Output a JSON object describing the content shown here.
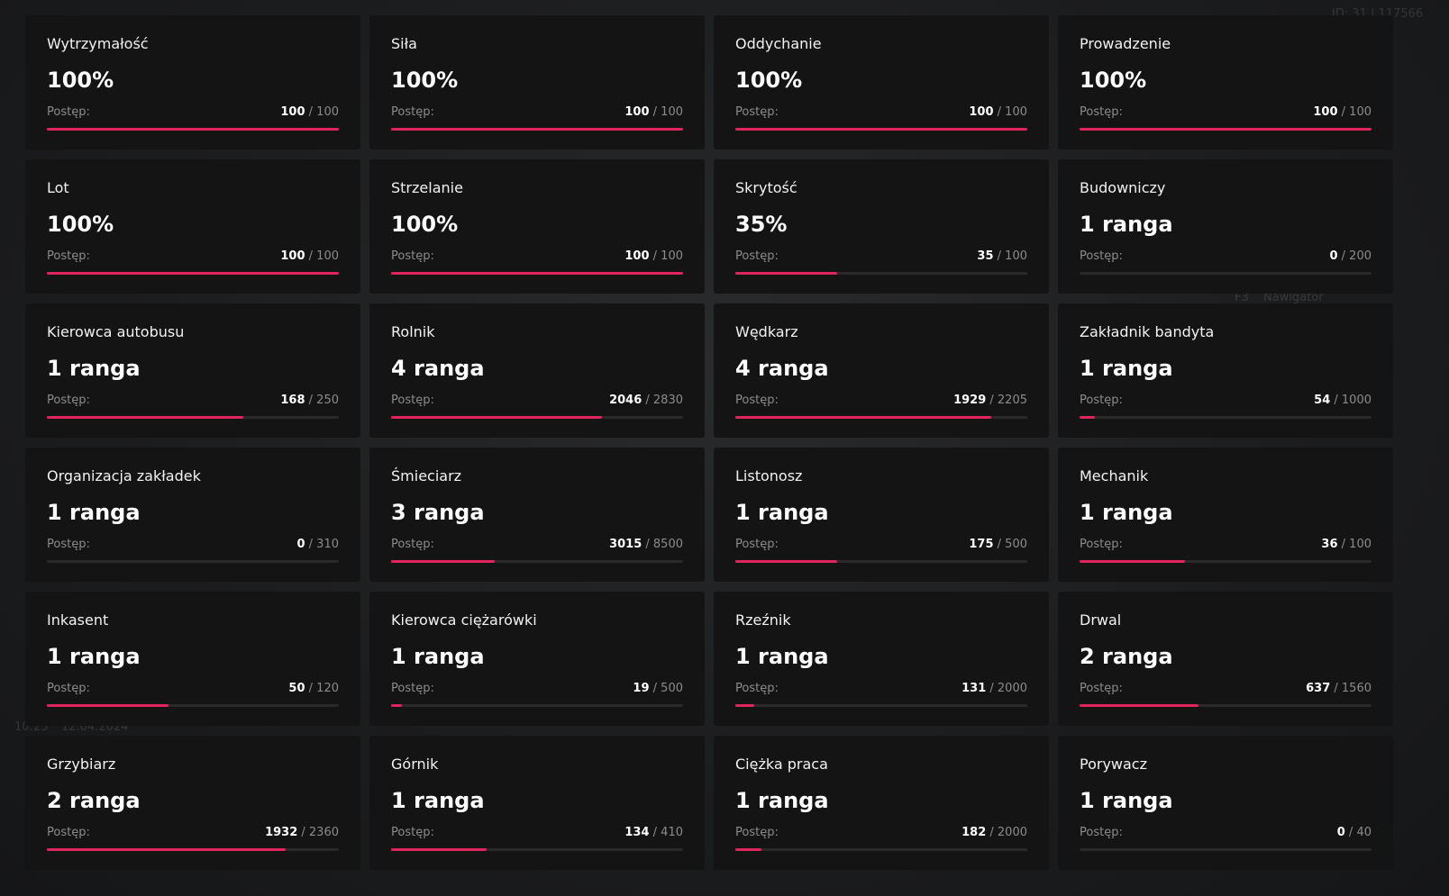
{
  "background": {
    "texts": [
      "ID: 31 | 117566",
      "F3",
      "Nawigator",
      "10:25",
      "12.04.2024"
    ]
  },
  "colors": {
    "accent": "#e0245e",
    "card": "#141414",
    "track": "#2a2a2a"
  },
  "progress_label": "Postęp:",
  "skills": [
    {
      "name": "Wytrzymałość",
      "value": "100%",
      "current": "100",
      "max": "100",
      "progress": 1.0
    },
    {
      "name": "Siła",
      "value": "100%",
      "current": "100",
      "max": "100",
      "progress": 1.0
    },
    {
      "name": "Oddychanie",
      "value": "100%",
      "current": "100",
      "max": "100",
      "progress": 1.0
    },
    {
      "name": "Prowadzenie",
      "value": "100%",
      "current": "100",
      "max": "100",
      "progress": 1.0
    },
    {
      "name": "Lot",
      "value": "100%",
      "current": "100",
      "max": "100",
      "progress": 1.0
    },
    {
      "name": "Strzelanie",
      "value": "100%",
      "current": "100",
      "max": "100",
      "progress": 1.0
    },
    {
      "name": "Skrytość",
      "value": "35%",
      "current": "35",
      "max": "100",
      "progress": 0.35
    },
    {
      "name": "Budowniczy",
      "value": "1 ranga",
      "current": "0",
      "max": "200",
      "progress": 0.0
    },
    {
      "name": "Kierowca autobusu",
      "value": "1 ranga",
      "current": "168",
      "max": "250",
      "progress": 0.672
    },
    {
      "name": "Rolnik",
      "value": "4 ranga",
      "current": "2046",
      "max": "2830",
      "progress": 0.723
    },
    {
      "name": "Wędkarz",
      "value": "4 ranga",
      "current": "1929",
      "max": "2205",
      "progress": 0.875
    },
    {
      "name": "Zakładnik bandyta",
      "value": "1 ranga",
      "current": "54",
      "max": "1000",
      "progress": 0.054
    },
    {
      "name": "Organizacja zakładek",
      "value": "1 ranga",
      "current": "0",
      "max": "310",
      "progress": 0.0
    },
    {
      "name": "Śmieciarz",
      "value": "3 ranga",
      "current": "3015",
      "max": "8500",
      "progress": 0.355
    },
    {
      "name": "Listonosz",
      "value": "1 ranga",
      "current": "175",
      "max": "500",
      "progress": 0.35
    },
    {
      "name": "Mechanik",
      "value": "1 ranga",
      "current": "36",
      "max": "100",
      "progress": 0.36
    },
    {
      "name": "Inkasent",
      "value": "1 ranga",
      "current": "50",
      "max": "120",
      "progress": 0.417
    },
    {
      "name": "Kierowca ciężarówki",
      "value": "1 ranga",
      "current": "19",
      "max": "500",
      "progress": 0.038
    },
    {
      "name": "Rzeźnik",
      "value": "1 ranga",
      "current": "131",
      "max": "2000",
      "progress": 0.066
    },
    {
      "name": "Drwal",
      "value": "2 ranga",
      "current": "637",
      "max": "1560",
      "progress": 0.408
    },
    {
      "name": "Grzybiarz",
      "value": "2 ranga",
      "current": "1932",
      "max": "2360",
      "progress": 0.819
    },
    {
      "name": "Górnik",
      "value": "1 ranga",
      "current": "134",
      "max": "410",
      "progress": 0.327
    },
    {
      "name": "Ciężka praca",
      "value": "1 ranga",
      "current": "182",
      "max": "2000",
      "progress": 0.091
    },
    {
      "name": "Porywacz",
      "value": "1 ranga",
      "current": "0",
      "max": "40",
      "progress": 0.0
    }
  ]
}
